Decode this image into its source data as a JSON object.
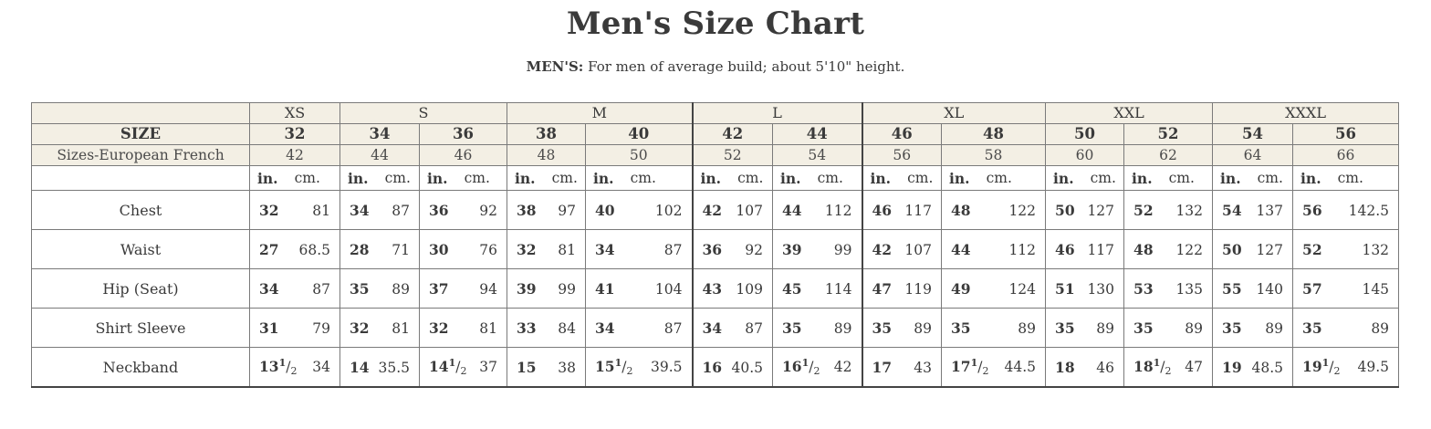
{
  "title": "Men's Size Chart",
  "subtitle_label": "MEN'S:",
  "subtitle_text": "For men of average build; about 5'10\" height.",
  "row_labels": {
    "size": "SIZE",
    "euro": "Sizes-European French",
    "chest": "Chest",
    "waist": "Waist",
    "hip": "Hip (Seat)",
    "sleeve": "Shirt Sleeve",
    "neck": "Neckband"
  },
  "units": {
    "in": "in.",
    "cm": "cm."
  },
  "letter_groups": [
    {
      "label": "XS",
      "span": 1
    },
    {
      "label": "S",
      "span": 2
    },
    {
      "label": "M",
      "span": 2
    },
    {
      "label": "L",
      "span": 2
    },
    {
      "label": "XL",
      "span": 2
    },
    {
      "label": "XXL",
      "span": 2
    },
    {
      "label": "XXXL",
      "span": 2
    }
  ],
  "sizes": [
    "32",
    "34",
    "36",
    "38",
    "40",
    "42",
    "44",
    "46",
    "48",
    "50",
    "52",
    "54",
    "56"
  ],
  "euro_sizes": [
    "42",
    "44",
    "46",
    "48",
    "50",
    "52",
    "54",
    "56",
    "58",
    "60",
    "62",
    "64",
    "66"
  ],
  "chest": [
    [
      "32",
      "81"
    ],
    [
      "34",
      "87"
    ],
    [
      "36",
      "92"
    ],
    [
      "38",
      "97"
    ],
    [
      "40",
      "102"
    ],
    [
      "42",
      "107"
    ],
    [
      "44",
      "112"
    ],
    [
      "46",
      "117"
    ],
    [
      "48",
      "122"
    ],
    [
      "50",
      "127"
    ],
    [
      "52",
      "132"
    ],
    [
      "54",
      "137"
    ],
    [
      "56",
      "142.5"
    ]
  ],
  "waist": [
    [
      "27",
      "68.5"
    ],
    [
      "28",
      "71"
    ],
    [
      "30",
      "76"
    ],
    [
      "32",
      "81"
    ],
    [
      "34",
      "87"
    ],
    [
      "36",
      "92"
    ],
    [
      "39",
      "99"
    ],
    [
      "42",
      "107"
    ],
    [
      "44",
      "112"
    ],
    [
      "46",
      "117"
    ],
    [
      "48",
      "122"
    ],
    [
      "50",
      "127"
    ],
    [
      "52",
      "132"
    ]
  ],
  "hip": [
    [
      "34",
      "87"
    ],
    [
      "35",
      "89"
    ],
    [
      "37",
      "94"
    ],
    [
      "39",
      "99"
    ],
    [
      "41",
      "104"
    ],
    [
      "43",
      "109"
    ],
    [
      "45",
      "114"
    ],
    [
      "47",
      "119"
    ],
    [
      "49",
      "124"
    ],
    [
      "51",
      "130"
    ],
    [
      "53",
      "135"
    ],
    [
      "55",
      "140"
    ],
    [
      "57",
      "145"
    ]
  ],
  "sleeve": [
    [
      "31",
      "79"
    ],
    [
      "32",
      "81"
    ],
    [
      "32",
      "81"
    ],
    [
      "33",
      "84"
    ],
    [
      "34",
      "87"
    ],
    [
      "34",
      "87"
    ],
    [
      "35",
      "89"
    ],
    [
      "35",
      "89"
    ],
    [
      "35",
      "89"
    ],
    [
      "35",
      "89"
    ],
    [
      "35",
      "89"
    ],
    [
      "35",
      "89"
    ],
    [
      "35",
      "89"
    ]
  ],
  "neck": [
    {
      "whole": "13",
      "frac": true,
      "cm": "34"
    },
    {
      "whole": "14",
      "frac": false,
      "cm": "35.5"
    },
    {
      "whole": "14",
      "frac": true,
      "cm": "37"
    },
    {
      "whole": "15",
      "frac": false,
      "cm": "38"
    },
    {
      "whole": "15",
      "frac": true,
      "cm": "39.5"
    },
    {
      "whole": "16",
      "frac": false,
      "cm": "40.5"
    },
    {
      "whole": "16",
      "frac": true,
      "cm": "42"
    },
    {
      "whole": "17",
      "frac": false,
      "cm": "43"
    },
    {
      "whole": "17",
      "frac": true,
      "cm": "44.5"
    },
    {
      "whole": "18",
      "frac": false,
      "cm": "46"
    },
    {
      "whole": "18",
      "frac": true,
      "cm": "47"
    },
    {
      "whole": "19",
      "frac": false,
      "cm": "48.5"
    },
    {
      "whole": "19",
      "frac": true,
      "cm": "49.5"
    }
  ],
  "fraction": {
    "num": "1",
    "slash": "/",
    "den": "2"
  }
}
